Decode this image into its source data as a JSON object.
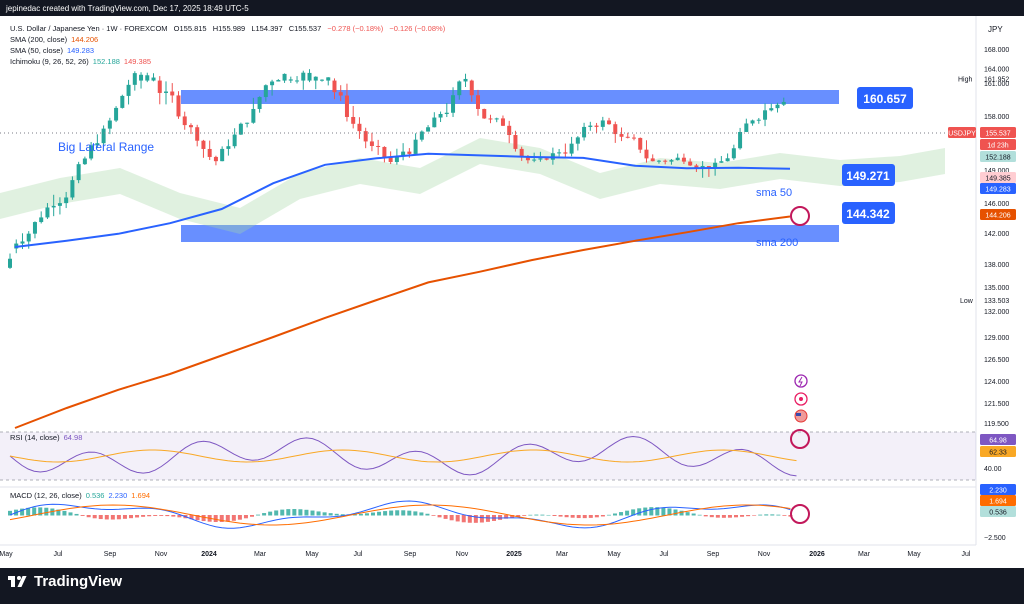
{
  "header": {
    "created": "jepinedac created with TradingView.com, Dec 17, 2025 18:49 UTC-5",
    "currency": "JPY",
    "symbol_line": {
      "name": "U.S. Dollar / Japanese Yen · 1W · FOREXCOM",
      "open": "O155.815",
      "high": "H155.989",
      "low": "L154.397",
      "close": "C155.537",
      "change": "−0.278 (−0.18%)",
      "extra": "−0.126 (−0.08%)"
    },
    "sma200": {
      "label": "SMA (200, close)",
      "value": "144.206"
    },
    "sma50": {
      "label": "SMA (50, close)",
      "value": "149.283"
    },
    "ichimoku": {
      "label": "Ichimoku (9, 26, 52, 26)",
      "v1": "152.188",
      "v2": "149.385"
    }
  },
  "annotations": {
    "range_title": "Big Lateral Range",
    "top_level": "160.657",
    "sma50_level": "149.271",
    "sma200_level": "144.342",
    "sma50_text": "sma 50",
    "sma200_text": "sma 200"
  },
  "price_axis": {
    "ticks": [
      "168.000",
      "164.000",
      "161.000",
      "158.000",
      "155.000",
      "152.000",
      "149.000",
      "146.000",
      "142.000",
      "138.000",
      "135.000",
      "132.000",
      "129.000",
      "126.500",
      "124.000",
      "121.500",
      "119.500"
    ],
    "high_label": "High",
    "high_value": "161.952",
    "low_label": "Low",
    "low_value": "133.503",
    "tags": {
      "usdjpy": "USDJPY",
      "usdjpy_value": "155.537",
      "countdown": "1d 23h",
      "ichi1": "152.188",
      "ichi2": "149.385",
      "sma50": "149.283",
      "sma200": "144.206"
    }
  },
  "rsi": {
    "label": "RSI (14, close)",
    "value": "64.98",
    "ticks": [
      "40.00"
    ],
    "tags": {
      "rsi": "64.98",
      "ma": "62.33"
    }
  },
  "macd": {
    "label": "MACD (12, 26, close)",
    "v1": "0.536",
    "v2": "2.230",
    "v3": "1.694",
    "ticks": [
      "−2.500"
    ],
    "tags": {
      "macd": "2.230",
      "signal": "1.694",
      "hist": "0.536"
    }
  },
  "time_axis": [
    "May",
    "Jul",
    "Sep",
    "Nov",
    "2024",
    "Mar",
    "May",
    "Jul",
    "Sep",
    "Nov",
    "2025",
    "Mar",
    "May",
    "Jul",
    "Sep",
    "Nov",
    "2026",
    "Mar",
    "May",
    "Jul"
  ],
  "brand": "TradingView",
  "colors": {
    "up": "#26a69a",
    "down": "#ef5350",
    "sma50": "#2962ff",
    "sma200": "#e65100",
    "zone": "#4d7bff",
    "label_bg": "#2962ff",
    "rsi": "#7e57c2",
    "macd": "#2962ff",
    "signal": "#ff6d00"
  },
  "chart_data": {
    "type": "line",
    "title": "U.S. Dollar / Japanese Yen · 1W · FOREXCOM",
    "y_range": [
      117.5,
      170
    ],
    "x": [
      "May",
      "Jul",
      "Sep",
      "Nov",
      "2024",
      "Mar",
      "May",
      "Jul",
      "Sep",
      "Nov",
      "2025",
      "Mar",
      "May",
      "Jul",
      "Sep",
      "Nov"
    ],
    "series": [
      {
        "name": "SMA (50, close)",
        "values": [
          140.2,
          141.0,
          141.9,
          143.3,
          145.2,
          147.8,
          150.2,
          151.7,
          152.4,
          152.2,
          152.0,
          151.8,
          150.0,
          149.4,
          149.5,
          149.3
        ]
      },
      {
        "name": "SMA (200, close)",
        "values": [
          119.0,
          121.0,
          123.0,
          124.8,
          126.9,
          129.0,
          131.2,
          133.5,
          135.6,
          137.0,
          138.5,
          139.8,
          141.0,
          142.1,
          143.3,
          144.2
        ]
      }
    ],
    "zones": [
      {
        "from": 160.0,
        "to": 161.2
      },
      {
        "from": 140.7,
        "to": 142.4
      }
    ]
  }
}
